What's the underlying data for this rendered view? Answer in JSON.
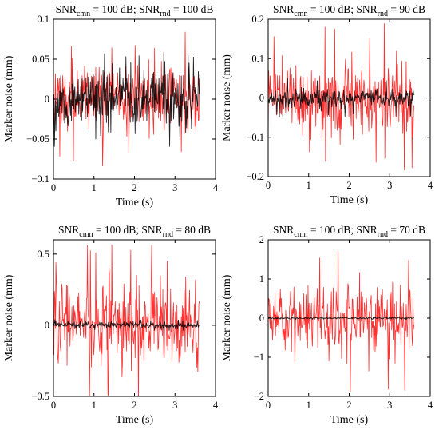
{
  "chart_data": [
    {
      "type": "line",
      "title": "SNRcmn = 100 dB; SNRrnd = 100 dB",
      "title_parts": {
        "a": "SNR",
        "a_sub": "cmn",
        "b": " = 100 dB; SNR",
        "b_sub": "rnd",
        "c": " = 100 dB"
      },
      "xlabel": "Time (s)",
      "ylabel": "Marker noise (mm)",
      "xlim": [
        0,
        4
      ],
      "ylim": [
        -0.1,
        0.1
      ],
      "x_ticks": [
        0,
        1,
        2,
        3,
        4
      ],
      "x_tick_labels": [
        "0",
        "1",
        "2",
        "3",
        "4"
      ],
      "y_ticks": [
        -0.1,
        -0.05,
        0,
        0.05,
        0.1
      ],
      "y_tick_labels": [
        "−0.1",
        "−0.05",
        "0",
        "0.05",
        "0.1"
      ],
      "grid": false,
      "time_range": [
        0,
        3.6
      ],
      "series": [
        {
          "color": "#ff1a1a",
          "amplitude_std": 0.019,
          "amplitude_peak": 0.085
        },
        {
          "color": "#000000",
          "amplitude_std": 0.017,
          "amplitude_peak": 0.06
        }
      ]
    },
    {
      "type": "line",
      "title": "SNRcmn = 100 dB; SNRrnd = 90 dB",
      "title_parts": {
        "a": "SNR",
        "a_sub": "cmn",
        "b": " = 100 dB; SNR",
        "b_sub": "rnd",
        "c": " = 90 dB"
      },
      "xlabel": "Time (s)",
      "ylabel": "Marker noise (mm)",
      "xlim": [
        0,
        4
      ],
      "ylim": [
        -0.2,
        0.2
      ],
      "x_ticks": [
        0,
        1,
        2,
        3,
        4
      ],
      "x_tick_labels": [
        "0",
        "1",
        "2",
        "3",
        "4"
      ],
      "y_ticks": [
        -0.2,
        -0.1,
        0,
        0.1,
        0.2
      ],
      "y_tick_labels": [
        "−0.2",
        "−0.1",
        "0",
        "0.1",
        "0.2"
      ],
      "grid": false,
      "time_range": [
        0,
        3.6
      ],
      "series": [
        {
          "color": "#ff1a1a",
          "amplitude_std": 0.045,
          "amplitude_peak": 0.19
        },
        {
          "color": "#000000",
          "amplitude_std": 0.012,
          "amplitude_peak": 0.05
        }
      ]
    },
    {
      "type": "line",
      "title": "SNRcmn = 100 dB; SNRrnd = 80 dB",
      "title_parts": {
        "a": "SNR",
        "a_sub": "cmn",
        "b": " = 100 dB; SNR",
        "b_sub": "rnd",
        "c": " = 80 dB"
      },
      "xlabel": "Time (s)",
      "ylabel": "Marker noise (mm)",
      "xlim": [
        0,
        4
      ],
      "ylim": [
        -0.5,
        0.6
      ],
      "x_ticks": [
        0,
        1,
        2,
        3,
        4
      ],
      "x_tick_labels": [
        "0",
        "1",
        "2",
        "3",
        "4"
      ],
      "y_ticks": [
        -0.5,
        0,
        0.5
      ],
      "y_tick_labels": [
        "−0.5",
        "0",
        "0.5"
      ],
      "grid": false,
      "time_range": [
        0,
        3.6
      ],
      "series": [
        {
          "color": "#ff1a1a",
          "amplitude_std": 0.15,
          "amplitude_peak": 0.58
        },
        {
          "color": "#000000",
          "amplitude_std": 0.012,
          "amplitude_peak": 0.04
        }
      ]
    },
    {
      "type": "line",
      "title": "SNRcmn = 100 dB; SNRrnd = 70 dB",
      "title_parts": {
        "a": "SNR",
        "a_sub": "cmn",
        "b": " = 100 dB; SNR",
        "b_sub": "rnd",
        "c": " = 70 dB"
      },
      "xlabel": "Time (s)",
      "ylabel": "Marker noise (mm)",
      "xlim": [
        0,
        4
      ],
      "ylim": [
        -2,
        2
      ],
      "x_ticks": [
        0,
        1,
        2,
        3,
        4
      ],
      "x_tick_labels": [
        "0",
        "1",
        "2",
        "3",
        "4"
      ],
      "y_ticks": [
        -2,
        -1,
        0,
        1,
        2
      ],
      "y_tick_labels": [
        "−2",
        "−1",
        "0",
        "1",
        "2"
      ],
      "grid": false,
      "time_range": [
        0,
        3.6
      ],
      "series": [
        {
          "color": "#ff1a1a",
          "amplitude_std": 0.42,
          "amplitude_peak": 1.9
        },
        {
          "color": "#000000",
          "amplitude_std": 0.012,
          "amplitude_peak": 0.03
        }
      ]
    }
  ]
}
